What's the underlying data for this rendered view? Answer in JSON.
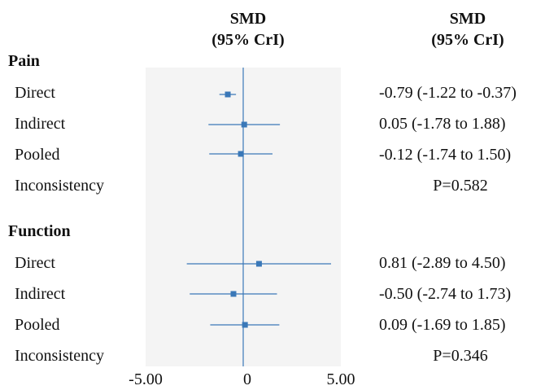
{
  "headers": {
    "plot": {
      "line1": "SMD",
      "line2": "(95% CrI)"
    },
    "values": {
      "line1": "SMD",
      "line2": "(95% CrI)"
    }
  },
  "sections": [
    {
      "title": "Pain",
      "rows": [
        {
          "label": "Direct",
          "ci_text": "-0.79 (-1.22 to -0.37)"
        },
        {
          "label": "Indirect",
          "ci_text": "0.05 (-1.78 to 1.88)"
        },
        {
          "label": "Pooled",
          "ci_text": "-0.12 (-1.74 to 1.50)"
        }
      ],
      "inconsistency_label": "Inconsistency",
      "inconsistency_p": "P=0.582"
    },
    {
      "title": "Function",
      "rows": [
        {
          "label": "Direct",
          "ci_text": "0.81 (-2.89 to 4.50)"
        },
        {
          "label": "Indirect",
          "ci_text": "-0.50 (-2.74 to 1.73)"
        },
        {
          "label": "Pooled",
          "ci_text": "0.09 (-1.69 to 1.85)"
        }
      ],
      "inconsistency_label": "Inconsistency",
      "inconsistency_p": "P=0.346"
    }
  ],
  "chart_data": {
    "type": "forest",
    "title": "",
    "xlabel": "",
    "xlim": [
      -5.0,
      5.0
    ],
    "x_ticks": [
      "-5.00",
      "0",
      "5.00"
    ],
    "reference_line": 0,
    "grid": false,
    "series": [
      {
        "name": "Pain",
        "points": [
          {
            "label": "Direct",
            "estimate": -0.79,
            "lower": -1.22,
            "upper": -0.37
          },
          {
            "label": "Indirect",
            "estimate": 0.05,
            "lower": -1.78,
            "upper": 1.88
          },
          {
            "label": "Pooled",
            "estimate": -0.12,
            "lower": -1.74,
            "upper": 1.5
          }
        ]
      },
      {
        "name": "Function",
        "points": [
          {
            "label": "Direct",
            "estimate": 0.81,
            "lower": -2.89,
            "upper": 4.5
          },
          {
            "label": "Indirect",
            "estimate": -0.5,
            "lower": -2.74,
            "upper": 1.73
          },
          {
            "label": "Pooled",
            "estimate": 0.09,
            "lower": -1.69,
            "upper": 1.85
          }
        ]
      }
    ],
    "colors": {
      "panel": "#f4f4f4",
      "marker": "#3a78b8",
      "reference": "#3a78b8"
    }
  }
}
